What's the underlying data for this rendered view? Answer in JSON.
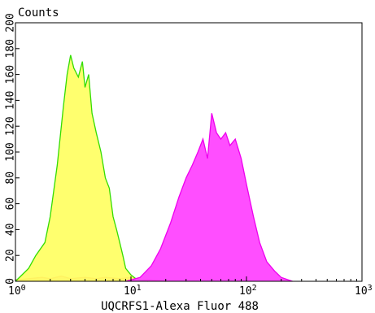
{
  "chart_data": {
    "type": "area",
    "title": "",
    "ylabel": "Counts",
    "xlabel": "UQCRFS1-Alexa Fluor 488",
    "x_scale": "log",
    "xlim": [
      1,
      1000
    ],
    "ylim": [
      0,
      200
    ],
    "grid": false,
    "legend": "none",
    "y_ticks": [
      0,
      20,
      40,
      60,
      80,
      100,
      120,
      140,
      160,
      180,
      200
    ],
    "y_tick_labels": [
      "0",
      "20",
      "40",
      "60",
      "80",
      "100",
      "120",
      "140",
      "160",
      "180",
      "200"
    ],
    "x_ticks": [
      {
        "base": "10",
        "exp": "0"
      },
      {
        "base": "10",
        "exp": "1"
      },
      {
        "base": "10",
        "exp": "2"
      },
      {
        "base": "10",
        "exp": "3"
      }
    ],
    "series": [
      {
        "color": "#ff0000",
        "fill": "#ff7777",
        "x": [
          1.0,
          1.3,
          1.7,
          2.0,
          2.5,
          3.0,
          4.0,
          5.0,
          6.0,
          8.0,
          10.0,
          12.0,
          15.0,
          20.0
        ],
        "y": [
          1,
          2,
          3,
          2,
          4,
          2,
          3,
          2,
          3,
          2,
          3,
          1,
          1,
          0
        ]
      },
      {
        "color": "#33dd00",
        "fill": "#ffff66",
        "x": [
          1.0,
          1.3,
          1.5,
          1.8,
          2.0,
          2.3,
          2.6,
          2.8,
          3.0,
          3.2,
          3.5,
          3.8,
          4.0,
          4.3,
          4.6,
          5.0,
          5.5,
          6.0,
          6.5,
          7.0,
          7.5,
          8.0,
          8.5,
          9.0,
          10.0,
          11.0,
          12.0,
          14.0
        ],
        "y": [
          0,
          10,
          20,
          30,
          50,
          90,
          135,
          160,
          175,
          165,
          158,
          170,
          150,
          160,
          130,
          115,
          100,
          80,
          72,
          50,
          40,
          30,
          20,
          10,
          5,
          2,
          1,
          0
        ]
      },
      {
        "color": "#ee00ee",
        "fill": "#ff44ff",
        "x": [
          9.0,
          12.0,
          15.0,
          18.0,
          22.0,
          26.0,
          30.0,
          34.0,
          38.0,
          42.0,
          46.0,
          50.0,
          55.0,
          60.0,
          66.0,
          72.0,
          80.0,
          90.0,
          100.0,
          115.0,
          130.0,
          150.0,
          175.0,
          200.0,
          250.0
        ],
        "y": [
          0,
          3,
          12,
          25,
          45,
          65,
          80,
          90,
          100,
          110,
          95,
          130,
          115,
          110,
          115,
          105,
          110,
          95,
          75,
          50,
          30,
          15,
          8,
          3,
          0
        ]
      }
    ]
  }
}
